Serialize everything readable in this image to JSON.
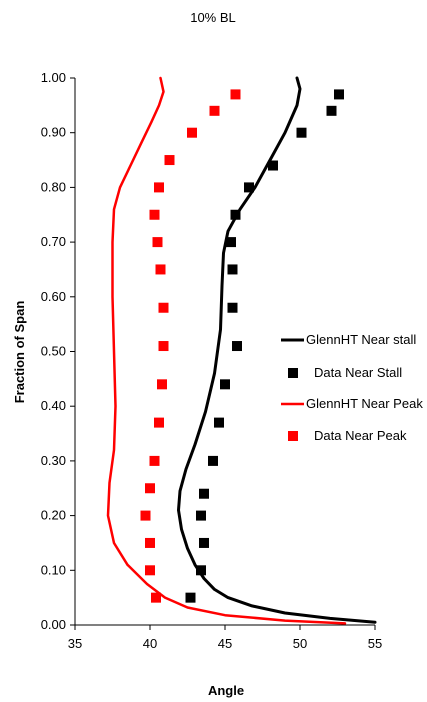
{
  "chart_data": {
    "type": "scatter",
    "title": "10% BL",
    "xlabel": "Angle",
    "ylabel": "Fraction of Span",
    "xlim": [
      35,
      55
    ],
    "ylim": [
      0.0,
      1.0
    ],
    "x_ticks": [
      "35",
      "40",
      "45",
      "50",
      "55"
    ],
    "y_ticks": [
      "0.00",
      "0.10",
      "0.20",
      "0.30",
      "0.40",
      "0.50",
      "0.60",
      "0.70",
      "0.80",
      "0.90",
      "1.00"
    ],
    "grid": false,
    "legend_position": "right",
    "series": [
      {
        "name": "GlennHT Near stall",
        "style": "line",
        "color": "#000000",
        "points": [
          [
            55.0,
            0.005
          ],
          [
            52.0,
            0.012
          ],
          [
            49.0,
            0.022
          ],
          [
            46.8,
            0.035
          ],
          [
            45.2,
            0.05
          ],
          [
            44.3,
            0.065
          ],
          [
            43.6,
            0.085
          ],
          [
            43.0,
            0.11
          ],
          [
            42.5,
            0.14
          ],
          [
            42.1,
            0.175
          ],
          [
            41.9,
            0.21
          ],
          [
            42.0,
            0.245
          ],
          [
            42.4,
            0.285
          ],
          [
            43.0,
            0.33
          ],
          [
            43.7,
            0.39
          ],
          [
            44.3,
            0.46
          ],
          [
            44.7,
            0.54
          ],
          [
            44.8,
            0.62
          ],
          [
            44.9,
            0.68
          ],
          [
            45.2,
            0.72
          ],
          [
            46.0,
            0.76
          ],
          [
            47.0,
            0.8
          ],
          [
            48.0,
            0.85
          ],
          [
            49.0,
            0.9
          ],
          [
            49.8,
            0.95
          ],
          [
            50.0,
            0.98
          ],
          [
            49.8,
            1.0
          ]
        ]
      },
      {
        "name": "Data Near Stall",
        "style": "marker",
        "color": "#000000",
        "points": [
          [
            42.7,
            0.05
          ],
          [
            43.4,
            0.1
          ],
          [
            43.6,
            0.15
          ],
          [
            43.4,
            0.2
          ],
          [
            43.6,
            0.24
          ],
          [
            44.2,
            0.3
          ],
          [
            44.6,
            0.37
          ],
          [
            45.0,
            0.44
          ],
          [
            45.8,
            0.51
          ],
          [
            45.5,
            0.58
          ],
          [
            45.5,
            0.65
          ],
          [
            45.4,
            0.7
          ],
          [
            45.7,
            0.75
          ],
          [
            46.6,
            0.8
          ],
          [
            48.2,
            0.84
          ],
          [
            50.1,
            0.9
          ],
          [
            52.1,
            0.94
          ],
          [
            52.6,
            0.97
          ]
        ]
      },
      {
        "name": "GlennHT Near Peak",
        "style": "line",
        "color": "#ff0000",
        "points": [
          [
            53.0,
            0.003
          ],
          [
            49.0,
            0.008
          ],
          [
            45.0,
            0.018
          ],
          [
            42.5,
            0.032
          ],
          [
            41.0,
            0.05
          ],
          [
            39.8,
            0.075
          ],
          [
            38.5,
            0.11
          ],
          [
            37.6,
            0.15
          ],
          [
            37.2,
            0.2
          ],
          [
            37.3,
            0.26
          ],
          [
            37.6,
            0.32
          ],
          [
            37.7,
            0.4
          ],
          [
            37.6,
            0.5
          ],
          [
            37.5,
            0.6
          ],
          [
            37.5,
            0.7
          ],
          [
            37.6,
            0.76
          ],
          [
            38.0,
            0.8
          ],
          [
            38.7,
            0.84
          ],
          [
            39.4,
            0.88
          ],
          [
            40.1,
            0.92
          ],
          [
            40.6,
            0.95
          ],
          [
            40.9,
            0.975
          ],
          [
            40.7,
            1.0
          ]
        ]
      },
      {
        "name": "Data Near Peak",
        "style": "marker",
        "color": "#ff0000",
        "points": [
          [
            40.4,
            0.05
          ],
          [
            40.0,
            0.1
          ],
          [
            40.0,
            0.15
          ],
          [
            39.7,
            0.2
          ],
          [
            40.0,
            0.25
          ],
          [
            40.3,
            0.3
          ],
          [
            40.6,
            0.37
          ],
          [
            40.8,
            0.44
          ],
          [
            40.9,
            0.51
          ],
          [
            40.9,
            0.58
          ],
          [
            40.7,
            0.65
          ],
          [
            40.5,
            0.7
          ],
          [
            40.3,
            0.75
          ],
          [
            40.6,
            0.8
          ],
          [
            41.3,
            0.85
          ],
          [
            42.8,
            0.9
          ],
          [
            44.3,
            0.94
          ],
          [
            45.7,
            0.97
          ]
        ]
      }
    ]
  }
}
